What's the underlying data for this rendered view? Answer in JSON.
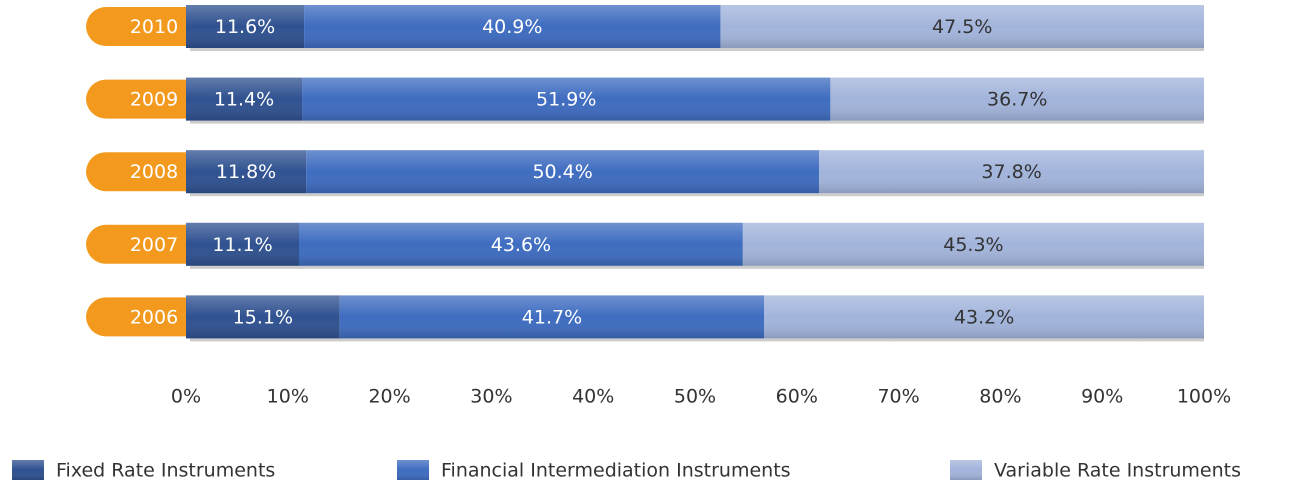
{
  "chart_data": {
    "type": "stacked-bar-horizontal",
    "categories": [
      "2010",
      "2009",
      "2008",
      "2007",
      "2006"
    ],
    "series": [
      {
        "name": "Fixed Rate Instruments",
        "color": "#2f5190",
        "values": [
          11.6,
          11.4,
          11.8,
          11.1,
          15.1
        ],
        "value_labels": [
          "11.6%",
          "11.4%",
          "11.8%",
          "11.1%",
          "15.1%"
        ]
      },
      {
        "name": "Financial Intermediation Instruments",
        "color": "#3e6cc0",
        "values": [
          40.9,
          51.9,
          50.4,
          43.6,
          41.7
        ],
        "value_labels": [
          "40.9%",
          "51.9%",
          "50.4%",
          "43.6%",
          "41.7%"
        ]
      },
      {
        "name": "Variable Rate Instruments",
        "color": "#a2b4db",
        "values": [
          47.5,
          36.7,
          37.8,
          45.3,
          43.2
        ],
        "value_labels": [
          "47.5%",
          "36.7%",
          "37.8%",
          "45.3%",
          "43.2%"
        ]
      }
    ],
    "xlim": [
      0,
      100
    ],
    "xticks": [
      {
        "value": 0,
        "label": "0%"
      },
      {
        "value": 10,
        "label": "10%"
      },
      {
        "value": 20,
        "label": "20%"
      },
      {
        "value": 30,
        "label": "30%"
      },
      {
        "value": 40,
        "label": "40%"
      },
      {
        "value": 50,
        "label": "50%"
      },
      {
        "value": 60,
        "label": "60%"
      },
      {
        "value": 70,
        "label": "70%"
      },
      {
        "value": 80,
        "label": "80%"
      },
      {
        "value": 90,
        "label": "90%"
      },
      {
        "value": 100,
        "label": "100%"
      }
    ],
    "category_color": "#f39a1e"
  }
}
